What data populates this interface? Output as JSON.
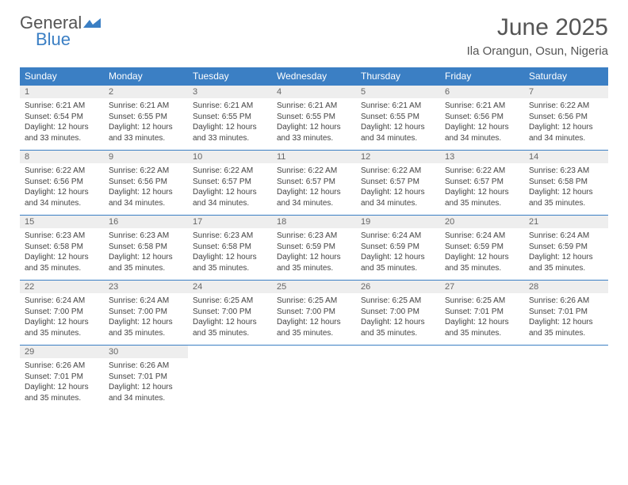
{
  "logo": {
    "general": "General",
    "blue": "Blue"
  },
  "title": "June 2025",
  "subtitle": "Ila Orangun, Osun, Nigeria",
  "colors": {
    "header_bg": "#3b7fc4",
    "header_text": "#ffffff",
    "daynum_bg": "#eeeeee",
    "border": "#3b7fc4",
    "text": "#444444",
    "title": "#555555"
  },
  "weekdays": [
    "Sunday",
    "Monday",
    "Tuesday",
    "Wednesday",
    "Thursday",
    "Friday",
    "Saturday"
  ],
  "days": [
    {
      "n": "1",
      "sunrise": "6:21 AM",
      "sunset": "6:54 PM",
      "daylight": "12 hours and 33 minutes."
    },
    {
      "n": "2",
      "sunrise": "6:21 AM",
      "sunset": "6:55 PM",
      "daylight": "12 hours and 33 minutes."
    },
    {
      "n": "3",
      "sunrise": "6:21 AM",
      "sunset": "6:55 PM",
      "daylight": "12 hours and 33 minutes."
    },
    {
      "n": "4",
      "sunrise": "6:21 AM",
      "sunset": "6:55 PM",
      "daylight": "12 hours and 33 minutes."
    },
    {
      "n": "5",
      "sunrise": "6:21 AM",
      "sunset": "6:55 PM",
      "daylight": "12 hours and 34 minutes."
    },
    {
      "n": "6",
      "sunrise": "6:21 AM",
      "sunset": "6:56 PM",
      "daylight": "12 hours and 34 minutes."
    },
    {
      "n": "7",
      "sunrise": "6:22 AM",
      "sunset": "6:56 PM",
      "daylight": "12 hours and 34 minutes."
    },
    {
      "n": "8",
      "sunrise": "6:22 AM",
      "sunset": "6:56 PM",
      "daylight": "12 hours and 34 minutes."
    },
    {
      "n": "9",
      "sunrise": "6:22 AM",
      "sunset": "6:56 PM",
      "daylight": "12 hours and 34 minutes."
    },
    {
      "n": "10",
      "sunrise": "6:22 AM",
      "sunset": "6:57 PM",
      "daylight": "12 hours and 34 minutes."
    },
    {
      "n": "11",
      "sunrise": "6:22 AM",
      "sunset": "6:57 PM",
      "daylight": "12 hours and 34 minutes."
    },
    {
      "n": "12",
      "sunrise": "6:22 AM",
      "sunset": "6:57 PM",
      "daylight": "12 hours and 34 minutes."
    },
    {
      "n": "13",
      "sunrise": "6:22 AM",
      "sunset": "6:57 PM",
      "daylight": "12 hours and 35 minutes."
    },
    {
      "n": "14",
      "sunrise": "6:23 AM",
      "sunset": "6:58 PM",
      "daylight": "12 hours and 35 minutes."
    },
    {
      "n": "15",
      "sunrise": "6:23 AM",
      "sunset": "6:58 PM",
      "daylight": "12 hours and 35 minutes."
    },
    {
      "n": "16",
      "sunrise": "6:23 AM",
      "sunset": "6:58 PM",
      "daylight": "12 hours and 35 minutes."
    },
    {
      "n": "17",
      "sunrise": "6:23 AM",
      "sunset": "6:58 PM",
      "daylight": "12 hours and 35 minutes."
    },
    {
      "n": "18",
      "sunrise": "6:23 AM",
      "sunset": "6:59 PM",
      "daylight": "12 hours and 35 minutes."
    },
    {
      "n": "19",
      "sunrise": "6:24 AM",
      "sunset": "6:59 PM",
      "daylight": "12 hours and 35 minutes."
    },
    {
      "n": "20",
      "sunrise": "6:24 AM",
      "sunset": "6:59 PM",
      "daylight": "12 hours and 35 minutes."
    },
    {
      "n": "21",
      "sunrise": "6:24 AM",
      "sunset": "6:59 PM",
      "daylight": "12 hours and 35 minutes."
    },
    {
      "n": "22",
      "sunrise": "6:24 AM",
      "sunset": "7:00 PM",
      "daylight": "12 hours and 35 minutes."
    },
    {
      "n": "23",
      "sunrise": "6:24 AM",
      "sunset": "7:00 PM",
      "daylight": "12 hours and 35 minutes."
    },
    {
      "n": "24",
      "sunrise": "6:25 AM",
      "sunset": "7:00 PM",
      "daylight": "12 hours and 35 minutes."
    },
    {
      "n": "25",
      "sunrise": "6:25 AM",
      "sunset": "7:00 PM",
      "daylight": "12 hours and 35 minutes."
    },
    {
      "n": "26",
      "sunrise": "6:25 AM",
      "sunset": "7:00 PM",
      "daylight": "12 hours and 35 minutes."
    },
    {
      "n": "27",
      "sunrise": "6:25 AM",
      "sunset": "7:01 PM",
      "daylight": "12 hours and 35 minutes."
    },
    {
      "n": "28",
      "sunrise": "6:26 AM",
      "sunset": "7:01 PM",
      "daylight": "12 hours and 35 minutes."
    },
    {
      "n": "29",
      "sunrise": "6:26 AM",
      "sunset": "7:01 PM",
      "daylight": "12 hours and 35 minutes."
    },
    {
      "n": "30",
      "sunrise": "6:26 AM",
      "sunset": "7:01 PM",
      "daylight": "12 hours and 34 minutes."
    }
  ],
  "labels": {
    "sunrise": "Sunrise:",
    "sunset": "Sunset:",
    "daylight": "Daylight:"
  }
}
